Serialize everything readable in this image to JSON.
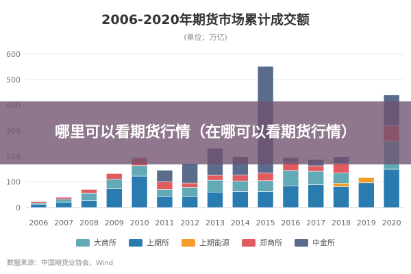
{
  "overlay": {
    "text": "哪里可以看期货行情（在哪可以看期货行情）"
  },
  "source": "数据来源：中国期货业协会，Wind",
  "chart_data": {
    "type": "bar",
    "stacked": true,
    "title": "2006-2020年期货市场累计成交额",
    "subtitle": "(单位：万亿)",
    "xlabel": "",
    "ylabel": "",
    "ylim": [
      0,
      600
    ],
    "yticks": [
      "0",
      "100",
      "200",
      "300",
      "400",
      "500",
      "600"
    ],
    "grid": true,
    "legend_position": "bottom",
    "categories": [
      "2006",
      "2007",
      "2008",
      "2009",
      "2010",
      "2011",
      "2012",
      "2013",
      "2014",
      "2015",
      "2016",
      "2017",
      "2018",
      "2019",
      "2020"
    ],
    "series": [
      {
        "name": "上期所",
        "color": "#2a7bb0",
        "values": [
          13,
          21,
          28,
          74,
          123,
          44,
          44,
          60,
          63,
          63,
          85,
          90,
          82,
          97,
          150
        ]
      },
      {
        "name": "上期能源",
        "color": "#f39c2b",
        "values": [
          0,
          0,
          0,
          0,
          0,
          0,
          0,
          0,
          0,
          0,
          0,
          0,
          13,
          20,
          0
        ]
      },
      {
        "name": "大商所",
        "color": "#62aab5",
        "values": [
          5,
          12,
          28,
          37,
          41,
          27,
          35,
          47,
          41,
          42,
          60,
          52,
          40,
          0,
          110
        ]
      },
      {
        "name": "郑商所",
        "color": "#e15b5f",
        "values": [
          5,
          7,
          15,
          22,
          31,
          30,
          17,
          19,
          23,
          30,
          30,
          21,
          38,
          0,
          60
        ]
      },
      {
        "name": "中金所",
        "color": "#5a6b8c",
        "values": [
          0,
          0,
          0,
          0,
          0,
          45,
          76,
          106,
          72,
          417,
          20,
          25,
          26,
          0,
          120
        ]
      }
    ],
    "legend_order": [
      "大商所",
      "上期所",
      "上期能源",
      "郑商所",
      "中金所"
    ]
  }
}
